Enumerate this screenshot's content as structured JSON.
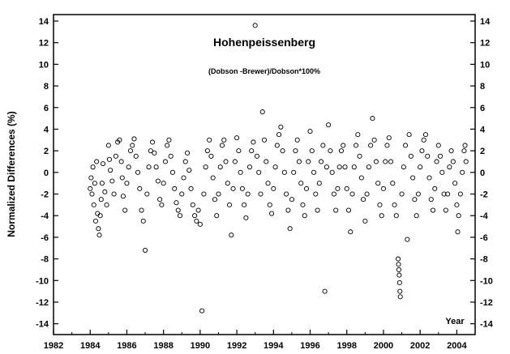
{
  "chart_data": {
    "type": "scatter",
    "title": "Hohenpeissenberg",
    "subtitle": "(Dobson -Brewer)/Dobson*100%",
    "xlabel": "Year",
    "ylabel": "Normalized Differences (%)",
    "xlim": [
      1982,
      2005
    ],
    "ylim": [
      -15,
      14.6
    ],
    "x_ticks": [
      1982,
      1984,
      1986,
      1988,
      1990,
      1992,
      1994,
      1996,
      1998,
      2000,
      2002,
      2004
    ],
    "y_ticks": [
      -14,
      -12,
      -10,
      -8,
      -6,
      -4,
      -2,
      0,
      2,
      4,
      6,
      8,
      10,
      12,
      14
    ],
    "y_axis_both_sides": true,
    "grid": false,
    "marker": "open-circle",
    "series": [
      {
        "points": [
          [
            1984.0,
            -1.5
          ],
          [
            1984.05,
            -0.5
          ],
          [
            1984.1,
            -2.0
          ],
          [
            1984.15,
            0.5
          ],
          [
            1984.2,
            -3.0
          ],
          [
            1984.25,
            -1.0
          ],
          [
            1984.3,
            -4.5
          ],
          [
            1984.35,
            1.0
          ],
          [
            1984.4,
            -3.8
          ],
          [
            1984.45,
            -5.2
          ],
          [
            1984.5,
            -5.8
          ],
          [
            1984.55,
            -4.0
          ],
          [
            1984.6,
            -2.5
          ],
          [
            1984.65,
            -1.0
          ],
          [
            1984.7,
            0.8
          ],
          [
            1984.8,
            -1.8
          ],
          [
            1984.9,
            -3.0
          ],
          [
            1985.0,
            2.5
          ],
          [
            1985.05,
            1.2
          ],
          [
            1985.1,
            0.2
          ],
          [
            1985.2,
            -0.8
          ],
          [
            1985.3,
            -2.0
          ],
          [
            1985.4,
            1.5
          ],
          [
            1985.5,
            2.8
          ],
          [
            1985.6,
            3.0
          ],
          [
            1985.7,
            1.0
          ],
          [
            1985.75,
            -0.5
          ],
          [
            1985.8,
            -2.2
          ],
          [
            1985.9,
            -3.5
          ],
          [
            1986.0,
            -1.0
          ],
          [
            1986.1,
            0.5
          ],
          [
            1986.2,
            2.0
          ],
          [
            1986.3,
            2.5
          ],
          [
            1986.4,
            3.1
          ],
          [
            1986.5,
            1.5
          ],
          [
            1986.6,
            0.0
          ],
          [
            1986.7,
            -1.5
          ],
          [
            1986.8,
            -3.5
          ],
          [
            1986.9,
            -4.5
          ],
          [
            1987.0,
            -7.2
          ],
          [
            1987.1,
            -2.0
          ],
          [
            1987.2,
            0.5
          ],
          [
            1987.3,
            2.0
          ],
          [
            1987.4,
            2.8
          ],
          [
            1987.5,
            1.8
          ],
          [
            1987.6,
            0.5
          ],
          [
            1987.7,
            -0.8
          ],
          [
            1987.8,
            -2.5
          ],
          [
            1987.9,
            -3.0
          ],
          [
            1988.0,
            -1.0
          ],
          [
            1988.1,
            1.0
          ],
          [
            1988.2,
            2.5
          ],
          [
            1988.3,
            3.0
          ],
          [
            1988.4,
            1.5
          ],
          [
            1988.5,
            0.0
          ],
          [
            1988.6,
            -1.5
          ],
          [
            1988.7,
            -2.8
          ],
          [
            1988.8,
            -3.5
          ],
          [
            1988.9,
            -4.0
          ],
          [
            1989.0,
            -2.0
          ],
          [
            1989.1,
            -0.5
          ],
          [
            1989.2,
            1.0
          ],
          [
            1989.3,
            1.8
          ],
          [
            1989.4,
            0.2
          ],
          [
            1989.5,
            -1.5
          ],
          [
            1989.6,
            -3.0
          ],
          [
            1989.7,
            -4.0
          ],
          [
            1989.8,
            -4.5
          ],
          [
            1989.9,
            -3.5
          ],
          [
            1990.0,
            -4.8
          ],
          [
            1990.1,
            -12.8
          ],
          [
            1990.2,
            -2.0
          ],
          [
            1990.3,
            0.5
          ],
          [
            1990.4,
            2.0
          ],
          [
            1990.5,
            3.0
          ],
          [
            1990.6,
            1.5
          ],
          [
            1990.7,
            -0.5
          ],
          [
            1990.8,
            -2.5
          ],
          [
            1990.9,
            -4.0
          ],
          [
            1991.0,
            -2.0
          ],
          [
            1991.1,
            0.5
          ],
          [
            1991.2,
            2.5
          ],
          [
            1991.3,
            3.0
          ],
          [
            1991.4,
            1.0
          ],
          [
            1991.5,
            -1.0
          ],
          [
            1991.6,
            -3.0
          ],
          [
            1991.7,
            -5.8
          ],
          [
            1991.8,
            -1.5
          ],
          [
            1991.9,
            1.0
          ],
          [
            1992.0,
            3.2
          ],
          [
            1992.1,
            2.0
          ],
          [
            1992.2,
            0.0
          ],
          [
            1992.3,
            -1.5
          ],
          [
            1992.4,
            -3.0
          ],
          [
            1992.5,
            -4.2
          ],
          [
            1992.6,
            -2.0
          ],
          [
            1992.7,
            0.5
          ],
          [
            1992.8,
            2.0
          ],
          [
            1992.9,
            2.8
          ],
          [
            1993.0,
            13.6
          ],
          [
            1993.1,
            1.5
          ],
          [
            1993.2,
            0.0
          ],
          [
            1993.3,
            -2.0
          ],
          [
            1993.4,
            5.6
          ],
          [
            1993.5,
            3.0
          ],
          [
            1993.6,
            1.0
          ],
          [
            1993.7,
            -1.0
          ],
          [
            1993.8,
            -3.0
          ],
          [
            1993.9,
            -3.8
          ],
          [
            1994.0,
            -1.5
          ],
          [
            1994.1,
            0.5
          ],
          [
            1994.2,
            2.5
          ],
          [
            1994.3,
            3.5
          ],
          [
            1994.4,
            4.2
          ],
          [
            1994.5,
            2.0
          ],
          [
            1994.6,
            0.0
          ],
          [
            1994.7,
            -2.0
          ],
          [
            1994.8,
            -3.5
          ],
          [
            1994.9,
            -5.2
          ],
          [
            1995.0,
            -2.5
          ],
          [
            1995.1,
            0.0
          ],
          [
            1995.2,
            2.0
          ],
          [
            1995.3,
            3.0
          ],
          [
            1995.4,
            1.0
          ],
          [
            1995.5,
            -1.0
          ],
          [
            1995.6,
            -3.0
          ],
          [
            1995.7,
            -4.0
          ],
          [
            1995.8,
            -1.5
          ],
          [
            1995.9,
            1.0
          ],
          [
            1996.0,
            3.8
          ],
          [
            1996.1,
            2.0
          ],
          [
            1996.2,
            0.0
          ],
          [
            1996.3,
            -2.0
          ],
          [
            1996.4,
            -3.5
          ],
          [
            1996.5,
            -1.0
          ],
          [
            1996.6,
            1.0
          ],
          [
            1996.7,
            2.5
          ],
          [
            1996.8,
            -11.0
          ],
          [
            1996.9,
            0.5
          ],
          [
            1997.0,
            4.4
          ],
          [
            1997.1,
            2.0
          ],
          [
            1997.2,
            0.0
          ],
          [
            1997.3,
            -2.0
          ],
          [
            1997.4,
            -3.5
          ],
          [
            1997.5,
            -1.5
          ],
          [
            1997.6,
            0.5
          ],
          [
            1997.7,
            2.0
          ],
          [
            1997.8,
            2.5
          ],
          [
            1997.9,
            0.5
          ],
          [
            1998.0,
            -1.5
          ],
          [
            1998.1,
            -3.5
          ],
          [
            1998.2,
            -5.5
          ],
          [
            1998.3,
            -2.0
          ],
          [
            1998.4,
            0.5
          ],
          [
            1998.5,
            2.5
          ],
          [
            1998.6,
            3.5
          ],
          [
            1998.7,
            1.5
          ],
          [
            1998.8,
            -0.5
          ],
          [
            1998.9,
            -2.5
          ],
          [
            1999.0,
            -4.5
          ],
          [
            1999.1,
            -2.0
          ],
          [
            1999.2,
            0.5
          ],
          [
            1999.3,
            2.5
          ],
          [
            1999.4,
            5.0
          ],
          [
            1999.5,
            3.0
          ],
          [
            1999.6,
            1.0
          ],
          [
            1999.7,
            -1.0
          ],
          [
            1999.8,
            -3.0
          ],
          [
            1999.9,
            -4.0
          ],
          [
            2000.0,
            -1.5
          ],
          [
            2000.1,
            1.0
          ],
          [
            2000.2,
            2.5
          ],
          [
            2000.3,
            3.2
          ],
          [
            2000.4,
            1.0
          ],
          [
            2000.5,
            -1.0
          ],
          [
            2000.6,
            -3.0
          ],
          [
            2000.7,
            -4.0
          ],
          [
            2000.8,
            -8.0
          ],
          [
            2000.82,
            -8.5
          ],
          [
            2000.84,
            -9.0
          ],
          [
            2000.86,
            -9.5
          ],
          [
            2000.88,
            -10.2
          ],
          [
            2000.9,
            -11.0
          ],
          [
            2000.92,
            -11.5
          ],
          [
            2001.0,
            -2.0
          ],
          [
            2001.1,
            0.5
          ],
          [
            2001.2,
            2.5
          ],
          [
            2001.3,
            -6.2
          ],
          [
            2001.4,
            3.5
          ],
          [
            2001.5,
            1.5
          ],
          [
            2001.6,
            -0.5
          ],
          [
            2001.7,
            -2.5
          ],
          [
            2001.8,
            -4.0
          ],
          [
            2001.9,
            -2.0
          ],
          [
            2002.0,
            0.5
          ],
          [
            2002.1,
            2.0
          ],
          [
            2002.2,
            3.0
          ],
          [
            2002.3,
            3.5
          ],
          [
            2002.4,
            1.5
          ],
          [
            2002.5,
            -0.5
          ],
          [
            2002.6,
            -2.5
          ],
          [
            2002.7,
            -3.5
          ],
          [
            2002.8,
            -1.5
          ],
          [
            2002.9,
            1.0
          ],
          [
            2003.0,
            2.5
          ],
          [
            2003.1,
            1.5
          ],
          [
            2003.2,
            0.0
          ],
          [
            2003.3,
            -2.0
          ],
          [
            2003.4,
            -3.5
          ],
          [
            2003.5,
            -2.0
          ],
          [
            2003.6,
            0.5
          ],
          [
            2003.7,
            2.0
          ],
          [
            2003.8,
            1.0
          ],
          [
            2003.9,
            -1.0
          ],
          [
            2004.0,
            -3.0
          ],
          [
            2004.05,
            -5.5
          ],
          [
            2004.1,
            -4.0
          ],
          [
            2004.2,
            -2.0
          ],
          [
            2004.3,
            0.0
          ],
          [
            2004.4,
            2.0
          ],
          [
            2004.45,
            2.5
          ],
          [
            2004.5,
            1.0
          ]
        ]
      }
    ]
  }
}
